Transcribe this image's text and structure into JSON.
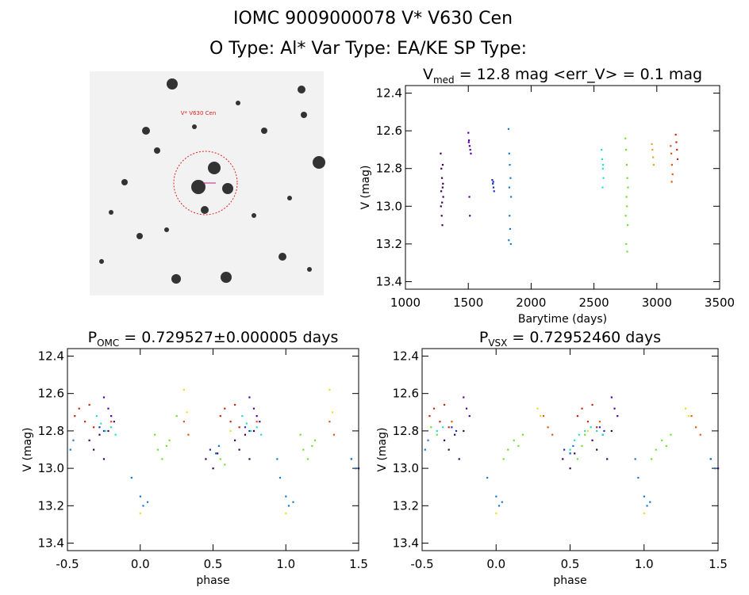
{
  "header": {
    "line1": "IOMC 9009000078    V* V630 Cen",
    "line2": "O Type: Al*  Var Type: EA/KE  SP Type:"
  },
  "image": {
    "label": "V* V630 Cen"
  },
  "chart_data": [
    {
      "type": "scatter",
      "title": "V",
      "title_subscript": "med",
      "title_suffix": " = 12.8 mag <err_V> = 0.1 mag",
      "xlabel": "Barytime (days)",
      "ylabel": "V (mag)",
      "xlim": [
        1000,
        3500
      ],
      "ylim": [
        13.44,
        12.36
      ],
      "xticks": [
        1000,
        1500,
        2000,
        2500,
        3000,
        3500
      ],
      "yticks": [
        12.4,
        12.6,
        12.8,
        {
          "value": 13,
          "label": "13.0"
        },
        13.2,
        13.4
      ],
      "series": [
        {
          "color": "#3a0050",
          "x": [
            1280,
            1285,
            1290,
            1295,
            1300,
            1282,
            1288,
            1293,
            1298,
            1284,
            1291,
            1296
          ],
          "values": [
            12.72,
            12.8,
            12.85,
            12.9,
            12.95,
            13.0,
            13.05,
            13.1,
            12.88,
            12.92,
            12.98,
            12.78
          ]
        },
        {
          "color": "#5000a0",
          "x": [
            1500,
            1505,
            1510,
            1515,
            1520,
            1508,
            1512,
            1503
          ],
          "values": [
            12.61,
            12.65,
            12.68,
            12.7,
            12.72,
            12.95,
            13.05,
            12.66
          ]
        },
        {
          "color": "#2030c0",
          "x": [
            1690,
            1695,
            1700,
            1705,
            1698
          ],
          "values": [
            12.86,
            12.88,
            12.9,
            12.92,
            12.87
          ]
        },
        {
          "color": "#1878d0",
          "x": [
            1820,
            1825,
            1830,
            1835,
            1840,
            1828,
            1832,
            1822,
            1838,
            1826
          ],
          "values": [
            12.59,
            12.72,
            12.78,
            12.85,
            12.95,
            13.05,
            13.12,
            13.18,
            13.2,
            12.9
          ]
        },
        {
          "color": "#20e0c8",
          "x": [
            2560,
            2565,
            2570,
            2575,
            2568,
            2572
          ],
          "values": [
            12.7,
            12.75,
            12.8,
            12.85,
            12.9,
            12.78
          ]
        },
        {
          "color": "#70e030",
          "x": [
            2750,
            2755,
            2760,
            2765,
            2770,
            2758,
            2762,
            2752,
            2768,
            2756,
            2764
          ],
          "values": [
            12.64,
            12.7,
            12.78,
            12.85,
            12.9,
            12.95,
            13.0,
            13.05,
            13.1,
            13.2,
            13.24
          ]
        },
        {
          "color": "#f0a020",
          "x": [
            2960,
            2965,
            2970,
            2975
          ],
          "values": [
            12.67,
            12.7,
            12.74,
            12.78
          ]
        },
        {
          "color": "#e05810",
          "x": [
            3110,
            3115,
            3120,
            3125,
            3118
          ],
          "values": [
            12.68,
            12.72,
            12.78,
            12.83,
            12.87
          ]
        },
        {
          "color": "#c02810",
          "x": [
            3150,
            3155,
            3160,
            3165
          ],
          "values": [
            12.62,
            12.66,
            12.7,
            12.75
          ]
        }
      ]
    },
    {
      "type": "scatter",
      "title": "P",
      "title_subscript": "OMC",
      "title_suffix": " = 0.729527±0.000005 days",
      "xlabel": "phase",
      "ylabel": "V (mag)",
      "xlim": [
        -0.5,
        1.5
      ],
      "ylim": [
        13.44,
        12.36
      ],
      "xticks": [
        -0.5,
        {
          "value": 0,
          "label": "0.0"
        },
        0.5,
        {
          "value": 1,
          "label": "1.0"
        },
        1.5
      ],
      "yticks": [
        12.4,
        12.6,
        12.8,
        {
          "value": 13,
          "label": "13.0"
        },
        13.2,
        13.4
      ],
      "series": [
        {
          "color": "#3a0050",
          "x": [
            -0.35,
            -0.32,
            -0.28,
            -0.25,
            -0.22,
            0.45,
            0.5,
            0.53,
            0.65,
            0.68,
            0.72,
            0.75,
            0.78,
            1.45,
            1.5
          ],
          "values": [
            12.85,
            12.9,
            12.82,
            12.95,
            12.8,
            12.95,
            13.0,
            12.92,
            12.85,
            12.9,
            12.82,
            12.95,
            12.8,
            12.95,
            13.0
          ]
        },
        {
          "color": "#5000a0",
          "x": [
            -0.25,
            -0.22,
            -0.2,
            -0.18,
            0.75,
            0.78,
            0.8,
            0.82
          ],
          "values": [
            12.62,
            12.68,
            12.72,
            12.75,
            12.62,
            12.68,
            12.72,
            12.75
          ]
        },
        {
          "color": "#2030c0",
          "x": [
            -0.28,
            -0.25,
            0.72,
            0.75,
            0.48,
            0.52
          ],
          "values": [
            12.78,
            12.8,
            12.78,
            12.8,
            12.9,
            12.92
          ]
        },
        {
          "color": "#1878d0",
          "x": [
            -0.48,
            -0.46,
            0.0,
            0.02,
            0.05,
            -0.06,
            0.52,
            0.54,
            0.94,
            0.96,
            1.0,
            1.02,
            1.05,
            1.45,
            1.48
          ],
          "values": [
            12.9,
            12.85,
            13.15,
            13.2,
            13.18,
            13.05,
            12.92,
            12.88,
            12.95,
            13.05,
            13.15,
            13.2,
            13.18,
            12.95,
            13.0
          ]
        },
        {
          "color": "#20e0c8",
          "x": [
            -0.3,
            -0.27,
            -0.24,
            -0.2,
            -0.17,
            0.7,
            0.73,
            0.76,
            0.8,
            0.83
          ],
          "values": [
            12.72,
            12.76,
            12.8,
            12.78,
            12.82,
            12.72,
            12.76,
            12.8,
            12.78,
            12.82
          ]
        },
        {
          "color": "#70e030",
          "x": [
            0.1,
            0.12,
            0.15,
            0.18,
            0.2,
            0.25,
            0.55,
            0.58,
            1.1,
            1.12,
            1.15,
            1.18,
            1.2
          ],
          "values": [
            12.82,
            12.9,
            12.95,
            12.88,
            12.85,
            12.72,
            12.95,
            12.98,
            12.82,
            12.9,
            12.95,
            12.88,
            12.85
          ]
        },
        {
          "color": "#e8e020",
          "x": [
            0.0,
            0.3,
            0.32,
            0.62,
            1.0,
            1.3,
            1.32
          ],
          "values": [
            13.24,
            12.58,
            12.7,
            12.8,
            13.24,
            12.58,
            12.7
          ]
        },
        {
          "color": "#e05810",
          "x": [
            -0.2,
            0.3,
            0.33,
            0.8,
            1.3,
            1.33
          ],
          "values": [
            12.75,
            12.75,
            12.82,
            12.75,
            12.75,
            12.82
          ]
        },
        {
          "color": "#c02810",
          "x": [
            -0.45,
            -0.42,
            -0.38,
            -0.35,
            -0.32,
            0.55,
            0.58,
            0.62,
            0.65,
            0.68
          ],
          "values": [
            12.72,
            12.68,
            12.75,
            12.66,
            12.78,
            12.72,
            12.68,
            12.75,
            12.66,
            12.78
          ]
        }
      ]
    },
    {
      "type": "scatter",
      "title": "P",
      "title_subscript": "VSX",
      "title_suffix": " = 0.72952460 days",
      "xlabel": "phase",
      "ylabel": "V (mag)",
      "xlim": [
        -0.5,
        1.5
      ],
      "ylim": [
        13.44,
        12.36
      ],
      "xticks": [
        -0.5,
        {
          "value": 0,
          "label": "0.0"
        },
        0.5,
        {
          "value": 1,
          "label": "1.0"
        },
        1.5
      ],
      "yticks": [
        12.4,
        12.6,
        12.8,
        {
          "value": 13,
          "label": "13.0"
        },
        13.2,
        13.4
      ],
      "series": [
        {
          "color": "#3a0050",
          "x": [
            -0.35,
            -0.32,
            -0.28,
            -0.25,
            -0.22,
            0.45,
            0.5,
            0.53,
            0.65,
            0.68,
            0.72,
            0.75,
            0.78,
            1.45,
            1.5
          ],
          "values": [
            12.85,
            12.9,
            12.82,
            12.95,
            12.8,
            12.95,
            13.0,
            12.92,
            12.85,
            12.9,
            12.82,
            12.95,
            12.8,
            12.95,
            13.0
          ]
        },
        {
          "color": "#5000a0",
          "x": [
            -0.22,
            -0.2,
            -0.18,
            0.78,
            0.8,
            0.82
          ],
          "values": [
            12.62,
            12.68,
            12.72,
            12.62,
            12.68,
            12.72
          ]
        },
        {
          "color": "#2030c0",
          "x": [
            -0.3,
            -0.27,
            0.7,
            0.73,
            0.46,
            0.5
          ],
          "values": [
            12.78,
            12.8,
            12.78,
            12.8,
            12.9,
            12.92
          ]
        },
        {
          "color": "#1878d0",
          "x": [
            -0.48,
            -0.46,
            0.0,
            0.02,
            0.04,
            -0.06,
            0.5,
            0.52,
            0.94,
            0.96,
            1.0,
            1.02,
            1.04,
            1.45,
            1.48
          ],
          "values": [
            12.9,
            12.85,
            13.15,
            13.2,
            13.18,
            13.05,
            12.92,
            12.88,
            12.95,
            13.05,
            13.15,
            13.2,
            13.18,
            12.95,
            13.0
          ]
        },
        {
          "color": "#20e0c8",
          "x": [
            -0.4,
            -0.36,
            0.5,
            0.53,
            0.56,
            0.6,
            0.64,
            0.68,
            0.72
          ],
          "values": [
            12.8,
            12.78,
            12.9,
            12.85,
            12.82,
            12.8,
            12.78,
            12.8,
            12.82
          ]
        },
        {
          "color": "#70e030",
          "x": [
            -0.44,
            -0.4,
            0.05,
            0.08,
            0.12,
            0.15,
            0.18,
            0.55,
            0.58,
            0.6,
            1.05,
            1.08,
            1.12,
            1.15,
            1.18
          ],
          "values": [
            12.78,
            12.82,
            12.95,
            12.9,
            12.85,
            12.88,
            12.82,
            12.95,
            12.88,
            12.82,
            12.95,
            12.9,
            12.85,
            12.88,
            12.82
          ]
        },
        {
          "color": "#e8e020",
          "x": [
            0.0,
            0.28,
            0.3,
            0.62,
            1.0,
            1.28,
            1.3
          ],
          "values": [
            13.24,
            12.68,
            12.72,
            12.8,
            13.24,
            12.68,
            12.72
          ]
        },
        {
          "color": "#e05810",
          "x": [
            -0.3,
            0.32,
            0.35,
            0.38,
            0.7,
            1.32,
            1.35,
            1.38
          ],
          "values": [
            12.75,
            12.72,
            12.78,
            12.82,
            12.75,
            12.72,
            12.78,
            12.82
          ]
        },
        {
          "color": "#c02810",
          "x": [
            -0.45,
            -0.42,
            -0.38,
            -0.35,
            -0.32,
            0.55,
            0.58,
            0.62,
            0.65,
            0.68
          ],
          "values": [
            12.72,
            12.68,
            12.75,
            12.66,
            12.78,
            12.72,
            12.68,
            12.75,
            12.66,
            12.78
          ]
        }
      ]
    }
  ]
}
